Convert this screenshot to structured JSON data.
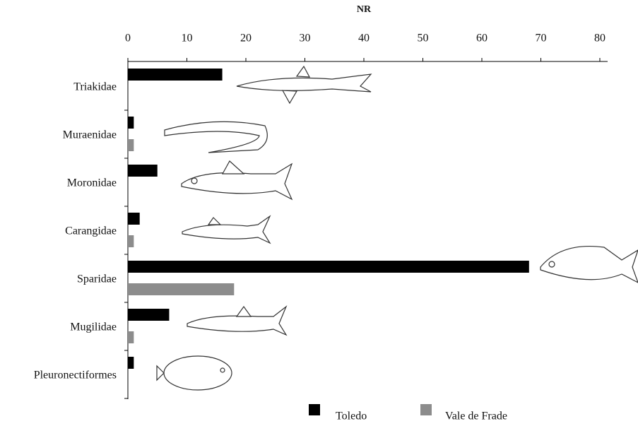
{
  "chart_data": {
    "type": "bar",
    "orientation": "horizontal",
    "x_label": "NR",
    "categories": [
      "Triakidae",
      "Muraenidae",
      "Moronidae",
      "Carangidae",
      "Sparidae",
      "Mugilidae",
      "Pleuronectiformes"
    ],
    "series": [
      {
        "name": "Toledo",
        "color": "#000000",
        "values": [
          16,
          1,
          5,
          2,
          68,
          7,
          1
        ]
      },
      {
        "name": "Vale de Frade",
        "color": "#8c8c8c",
        "values": [
          0,
          1,
          0,
          1,
          18,
          1,
          0
        ]
      }
    ],
    "xlim": [
      0,
      80
    ],
    "xticks": [
      0,
      10,
      20,
      30,
      40,
      50,
      60,
      70,
      80
    ],
    "grid": false,
    "legend": "bottom"
  }
}
